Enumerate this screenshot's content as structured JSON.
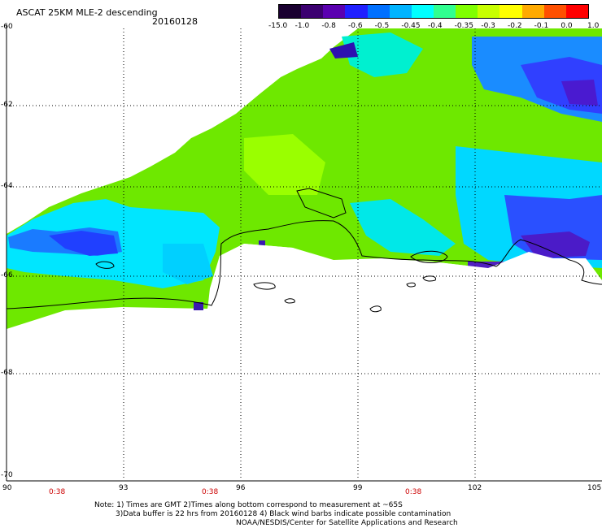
{
  "header": {
    "title": "ASCAT 25KM MLE-2 descending",
    "date": "20160128"
  },
  "colorbar": {
    "labels": [
      "-15.0",
      "-1.0",
      "-0.8",
      "-0.6",
      "-0.5",
      "-0.45",
      "-0.4",
      "-0.35",
      "-0.3",
      "-0.2",
      "-0.1",
      "0.0",
      "1.0"
    ],
    "colors": [
      "#1a0030",
      "#3b0070",
      "#5a00b0",
      "#2020ff",
      "#0070ff",
      "#00b4ff",
      "#00ffff",
      "#30ff90",
      "#80ff00",
      "#c8ff00",
      "#ffff00",
      "#ffaa00",
      "#ff5000",
      "#ff0000"
    ]
  },
  "axes": {
    "lat_labels": [
      "-60",
      "-62",
      "-64",
      "-66",
      "-68",
      "-70"
    ],
    "lon_labels": [
      "90",
      "93",
      "96",
      "99",
      "102",
      "105"
    ],
    "time_labels": [
      "0:38",
      "0:38",
      "0:38"
    ]
  },
  "notes": {
    "line1": "Note: 1) Times are GMT 2)Times along bottom correspond to measurement at ~65S",
    "line2": "3)Data buffer is 22 hrs from 20160128 4) Black wind barbs indicate possible contamination",
    "line3": "NOAA/NESDIS/Center for Satellite Applications and Research"
  }
}
